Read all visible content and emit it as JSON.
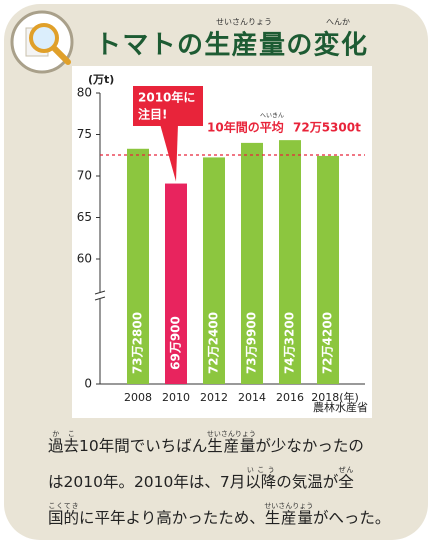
{
  "header": {
    "title": "トマトの生産量の変化",
    "title_ruby": [
      {
        "text": "せいさんりょう",
        "over": "生産量"
      },
      {
        "text": "へんか",
        "over": "変化"
      }
    ]
  },
  "chart_data": {
    "type": "bar",
    "y_unit": "(万t)",
    "source": "農林水産省",
    "categories": [
      "2008",
      "2010",
      "2012",
      "2014",
      "2016",
      "2018(年)"
    ],
    "values": [
      73.28,
      69.09,
      72.24,
      73.99,
      74.32,
      72.42
    ],
    "value_labels": [
      "73万2800",
      "69万900",
      "72万2400",
      "73万9900",
      "74万3200",
      "72万4200"
    ],
    "colors": [
      "#8cc63f",
      "#e8245e",
      "#8cc63f",
      "#8cc63f",
      "#8cc63f",
      "#8cc63f"
    ],
    "ylim": [
      0,
      80
    ],
    "yticks": [
      0,
      60,
      65,
      70,
      75,
      80
    ],
    "axis_break": true,
    "mean": 72.53,
    "mean_label": "10年間の平均",
    "mean_ruby": "へいきん",
    "mean_value_label": "72万5300t",
    "mean_color": "#e8243a",
    "annotation_lines": [
      "2010年に",
      "注目!"
    ]
  },
  "body": {
    "lines": [
      [
        {
          "text": "過去",
          "ruby": "かこ"
        },
        {
          "text": "10年間でいちばん"
        },
        {
          "text": "生産量",
          "ruby": "せいさんりょう"
        },
        {
          "text": "が少なかったの"
        }
      ],
      [
        {
          "text": "は2010年。2010年は、7月"
        },
        {
          "text": "以降",
          "ruby": "いこう"
        },
        {
          "text": "の気温が"
        },
        {
          "text": "全",
          "ruby": "ぜん"
        }
      ],
      [
        {
          "text": "国的",
          "ruby": "こくてき"
        },
        {
          "text": "に平年より高かったため、"
        },
        {
          "text": "生産量",
          "ruby": "せいさんりょう"
        },
        {
          "text": "がへった。"
        }
      ]
    ]
  }
}
